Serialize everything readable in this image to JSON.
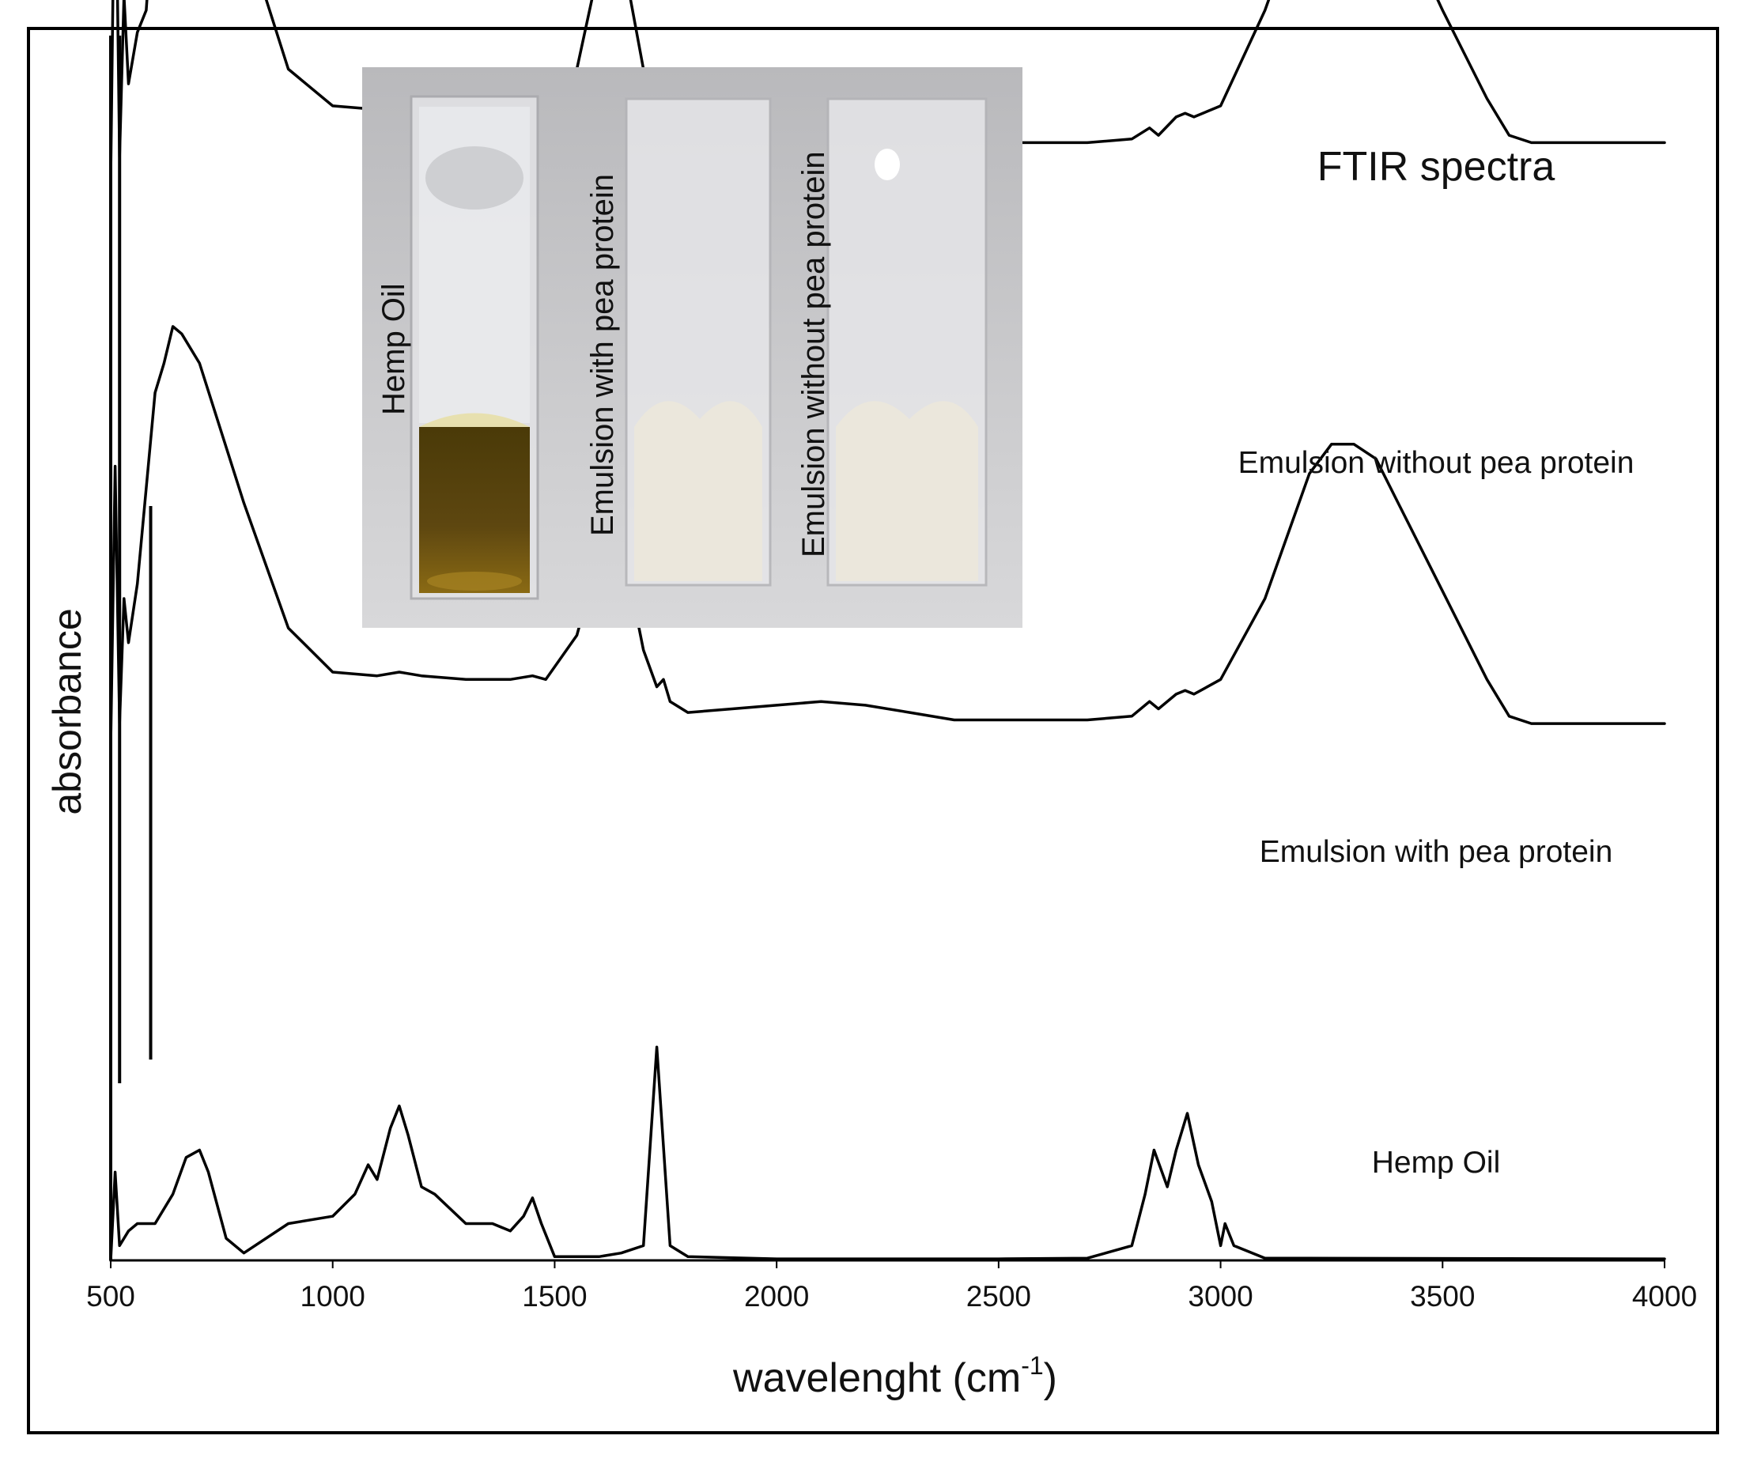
{
  "chart_data": {
    "type": "line",
    "title": "FTIR spectra",
    "xlabel": "wavelenght (cm",
    "xlabel_superscript": "-1",
    "xlabel_close": ")",
    "ylabel": "absorbance",
    "xlim": [
      500,
      4000
    ],
    "x_ticks": [
      "500",
      "1000",
      "1500",
      "2000",
      "2500",
      "3000",
      "3500",
      "4000"
    ],
    "y_ticks": "none",
    "grid": false,
    "legend": "none (series labelled inline)",
    "line_color": "#000000",
    "series": [
      {
        "name": "Emulsion without pea protein",
        "offset": 1.42,
        "points": [
          [
            500,
            0.05
          ],
          [
            510,
            0.55
          ],
          [
            520,
            0.08
          ],
          [
            530,
            0.3
          ],
          [
            540,
            0.18
          ],
          [
            560,
            0.25
          ],
          [
            580,
            0.28
          ],
          [
            600,
            0.45
          ],
          [
            620,
            0.58
          ],
          [
            640,
            0.65
          ],
          [
            660,
            0.63
          ],
          [
            700,
            0.59
          ],
          [
            800,
            0.39
          ],
          [
            900,
            0.2
          ],
          [
            1000,
            0.15
          ],
          [
            1100,
            0.145
          ],
          [
            1150,
            0.16
          ],
          [
            1200,
            0.15
          ],
          [
            1300,
            0.14
          ],
          [
            1400,
            0.14
          ],
          [
            1450,
            0.15
          ],
          [
            1480,
            0.145
          ],
          [
            1550,
            0.2
          ],
          [
            1600,
            0.34
          ],
          [
            1630,
            0.37
          ],
          [
            1660,
            0.33
          ],
          [
            1700,
            0.2
          ],
          [
            1730,
            0.15
          ],
          [
            1745,
            0.16
          ],
          [
            1760,
            0.13
          ],
          [
            1800,
            0.115
          ],
          [
            1900,
            0.115
          ],
          [
            2000,
            0.12
          ],
          [
            2100,
            0.13
          ],
          [
            2200,
            0.125
          ],
          [
            2300,
            0.11
          ],
          [
            2400,
            0.1
          ],
          [
            2500,
            0.1
          ],
          [
            2600,
            0.1
          ],
          [
            2700,
            0.1
          ],
          [
            2800,
            0.105
          ],
          [
            2840,
            0.12
          ],
          [
            2860,
            0.11
          ],
          [
            2900,
            0.135
          ],
          [
            2920,
            0.14
          ],
          [
            2940,
            0.135
          ],
          [
            3000,
            0.15
          ],
          [
            3100,
            0.28
          ],
          [
            3200,
            0.45
          ],
          [
            3250,
            0.49
          ],
          [
            3300,
            0.49
          ],
          [
            3350,
            0.47
          ],
          [
            3400,
            0.41
          ],
          [
            3500,
            0.28
          ],
          [
            3600,
            0.16
          ],
          [
            3650,
            0.11
          ],
          [
            3700,
            0.1
          ],
          [
            3800,
            0.1
          ],
          [
            4000,
            0.1
          ]
        ]
      },
      {
        "name": "Emulsion with pea protein",
        "offset": 0.7,
        "points": [
          [
            500,
            0.0
          ],
          [
            510,
            0.38
          ],
          [
            520,
            0.03
          ],
          [
            530,
            0.2
          ],
          [
            540,
            0.14
          ],
          [
            560,
            0.22
          ],
          [
            580,
            0.35
          ],
          [
            600,
            0.48
          ],
          [
            620,
            0.52
          ],
          [
            640,
            0.57
          ],
          [
            660,
            0.56
          ],
          [
            700,
            0.52
          ],
          [
            800,
            0.33
          ],
          [
            900,
            0.16
          ],
          [
            1000,
            0.1
          ],
          [
            1100,
            0.095
          ],
          [
            1150,
            0.1
          ],
          [
            1200,
            0.095
          ],
          [
            1300,
            0.09
          ],
          [
            1400,
            0.09
          ],
          [
            1450,
            0.095
          ],
          [
            1480,
            0.09
          ],
          [
            1550,
            0.15
          ],
          [
            1600,
            0.26
          ],
          [
            1630,
            0.29
          ],
          [
            1660,
            0.25
          ],
          [
            1700,
            0.13
          ],
          [
            1730,
            0.08
          ],
          [
            1745,
            0.09
          ],
          [
            1760,
            0.06
          ],
          [
            1800,
            0.045
          ],
          [
            1900,
            0.05
          ],
          [
            2000,
            0.055
          ],
          [
            2100,
            0.06
          ],
          [
            2200,
            0.055
          ],
          [
            2300,
            0.045
          ],
          [
            2400,
            0.035
          ],
          [
            2500,
            0.035
          ],
          [
            2600,
            0.035
          ],
          [
            2700,
            0.035
          ],
          [
            2800,
            0.04
          ],
          [
            2840,
            0.06
          ],
          [
            2860,
            0.05
          ],
          [
            2900,
            0.07
          ],
          [
            2920,
            0.075
          ],
          [
            2940,
            0.07
          ],
          [
            3000,
            0.09
          ],
          [
            3100,
            0.2
          ],
          [
            3200,
            0.37
          ],
          [
            3250,
            0.41
          ],
          [
            3300,
            0.41
          ],
          [
            3350,
            0.39
          ],
          [
            3400,
            0.33
          ],
          [
            3500,
            0.21
          ],
          [
            3600,
            0.09
          ],
          [
            3650,
            0.04
          ],
          [
            3700,
            0.03
          ],
          [
            3800,
            0.03
          ],
          [
            4000,
            0.03
          ]
        ]
      },
      {
        "name": "Hemp Oil",
        "offset": 0,
        "points": [
          [
            500,
            0.0
          ],
          [
            510,
            0.12
          ],
          [
            520,
            0.02
          ],
          [
            540,
            0.04
          ],
          [
            560,
            0.05
          ],
          [
            600,
            0.05
          ],
          [
            640,
            0.09
          ],
          [
            670,
            0.14
          ],
          [
            700,
            0.15
          ],
          [
            720,
            0.12
          ],
          [
            760,
            0.03
          ],
          [
            800,
            0.01
          ],
          [
            900,
            0.05
          ],
          [
            1000,
            0.06
          ],
          [
            1050,
            0.09
          ],
          [
            1080,
            0.13
          ],
          [
            1100,
            0.11
          ],
          [
            1130,
            0.18
          ],
          [
            1150,
            0.21
          ],
          [
            1170,
            0.17
          ],
          [
            1200,
            0.1
          ],
          [
            1230,
            0.09
          ],
          [
            1300,
            0.05
          ],
          [
            1360,
            0.05
          ],
          [
            1400,
            0.04
          ],
          [
            1430,
            0.06
          ],
          [
            1450,
            0.085
          ],
          [
            1470,
            0.05
          ],
          [
            1500,
            0.005
          ],
          [
            1600,
            0.005
          ],
          [
            1650,
            0.01
          ],
          [
            1700,
            0.02
          ],
          [
            1730,
            0.29
          ],
          [
            1760,
            0.02
          ],
          [
            1800,
            0.005
          ],
          [
            2000,
            0.002
          ],
          [
            2500,
            0.002
          ],
          [
            2700,
            0.003
          ],
          [
            2800,
            0.02
          ],
          [
            2830,
            0.09
          ],
          [
            2850,
            0.15
          ],
          [
            2880,
            0.1
          ],
          [
            2900,
            0.15
          ],
          [
            2925,
            0.2
          ],
          [
            2950,
            0.13
          ],
          [
            2980,
            0.08
          ],
          [
            3000,
            0.02
          ],
          [
            3010,
            0.05
          ],
          [
            3030,
            0.02
          ],
          [
            3100,
            0.003
          ],
          [
            4000,
            0.002
          ]
        ]
      }
    ],
    "annotations": [
      {
        "text": "Emulsion without pea protein",
        "x": 3260,
        "series": 0
      },
      {
        "text": "Emulsion with pea protein",
        "x": 3260,
        "series": 1
      },
      {
        "text": "Hemp Oil",
        "x": 3260,
        "series": 2
      }
    ],
    "inset_photo": {
      "labels": [
        "Hemp Oil",
        "Emulsion with pea protein",
        "Emulsion without pea protein"
      ],
      "colors": {
        "background": "#c9c9cb",
        "oil": "#6b4f0c",
        "emulsion": "#ece9e0"
      }
    }
  }
}
